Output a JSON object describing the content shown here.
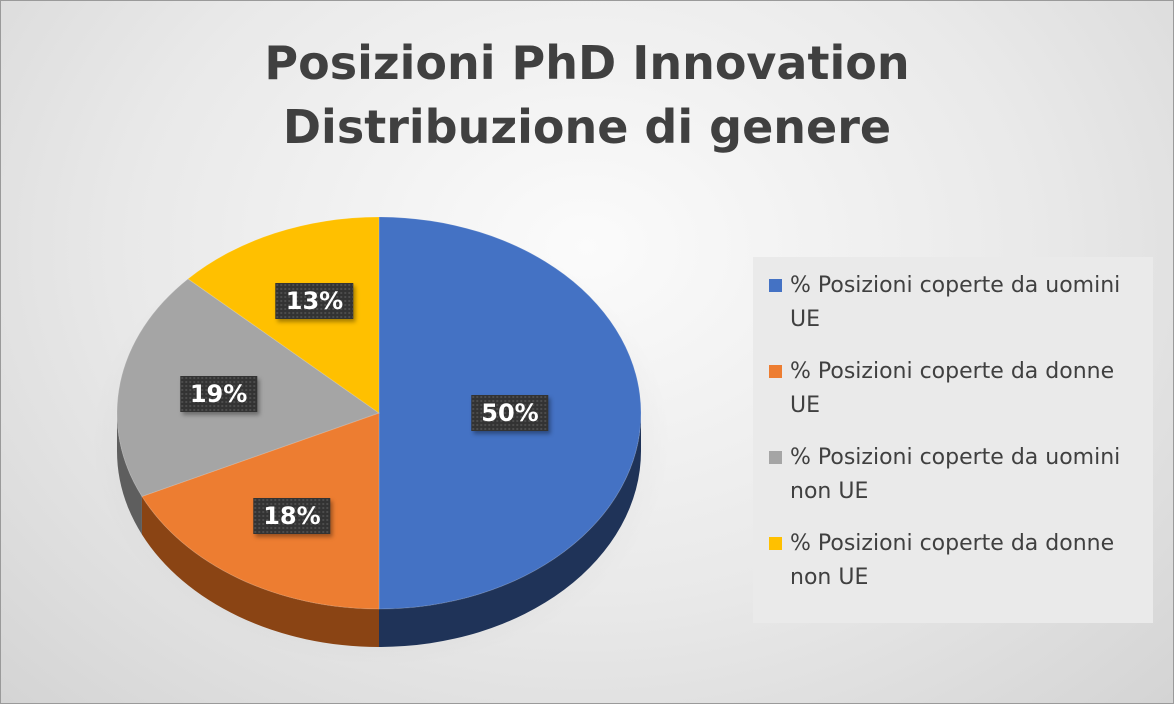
{
  "chart_data": {
    "type": "pie",
    "title": [
      "Posizioni PhD Innovation",
      "Distribuzione di genere"
    ],
    "legend_position": "right",
    "slices": [
      {
        "label": "% Posizioni coperte da uomini UE",
        "value": 50,
        "value_label": "50%",
        "color": "#4472C4",
        "side_color": "#1F3358"
      },
      {
        "label": "% Posizioni coperte da donne UE",
        "value": 18,
        "value_label": "18%",
        "color": "#ED7D31",
        "side_color": "#8A4414"
      },
      {
        "label": "% Posizioni coperte da uomini non UE",
        "value": 19,
        "value_label": "19%",
        "color": "#A5A5A5",
        "side_color": "#5E5E5E"
      },
      {
        "label": "% Posizioni coperte da donne non UE",
        "value": 13,
        "value_label": "13%",
        "color": "#FFC000",
        "side_color": "#8C6A00"
      }
    ]
  }
}
